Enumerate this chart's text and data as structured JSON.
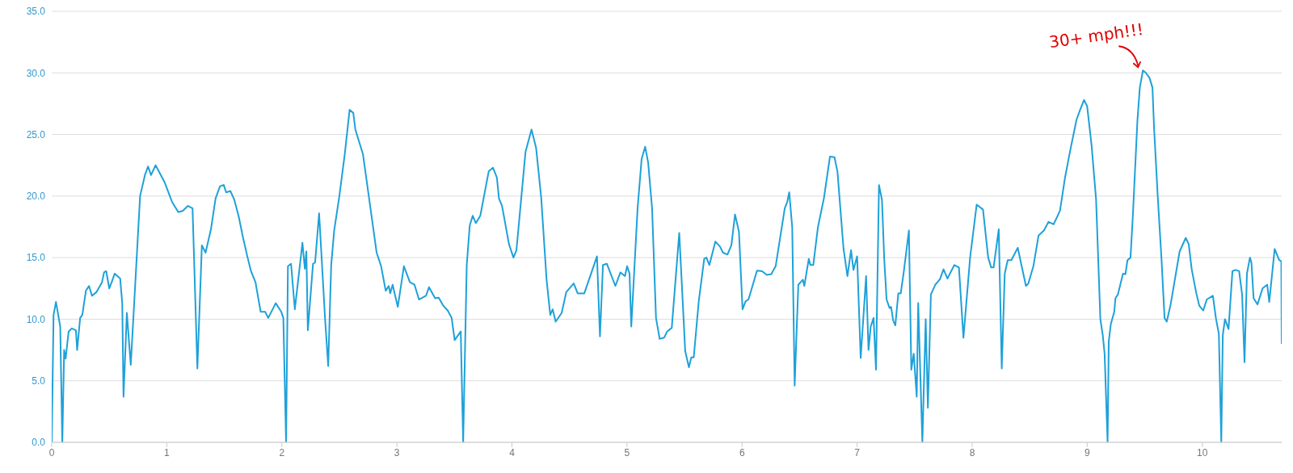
{
  "chart_data": {
    "type": "line",
    "x": [
      0,
      0.016,
      0.037,
      0.074,
      0.092,
      0.108,
      0.121,
      0.147,
      0.174,
      0.21,
      0.221,
      0.247,
      0.266,
      0.297,
      0.324,
      0.35,
      0.389,
      0.437,
      0.455,
      0.474,
      0.5,
      0.521,
      0.547,
      0.595,
      0.613,
      0.624,
      0.653,
      0.687,
      0.718,
      0.768,
      0.81,
      0.837,
      0.863,
      0.903,
      0.982,
      1.047,
      1.1,
      1.139,
      1.184,
      1.224,
      1.266,
      1.305,
      1.337,
      1.384,
      1.424,
      1.463,
      1.495,
      1.516,
      1.553,
      1.587,
      1.626,
      1.661,
      1.7,
      1.732,
      1.771,
      1.816,
      1.855,
      1.882,
      1.947,
      1.995,
      2.013,
      2.037,
      2.053,
      2.08,
      2.113,
      2.179,
      2.2,
      2.213,
      2.226,
      2.271,
      2.289,
      2.324,
      2.376,
      2.403,
      2.429,
      2.455,
      2.5,
      2.547,
      2.589,
      2.621,
      2.639,
      2.705,
      2.824,
      2.863,
      2.903,
      2.929,
      2.942,
      2.963,
      3.008,
      3.061,
      3.113,
      3.153,
      3.192,
      3.253,
      3.279,
      3.332,
      3.363,
      3.403,
      3.442,
      3.476,
      3.502,
      3.555,
      3.576,
      3.607,
      3.633,
      3.659,
      3.686,
      3.725,
      3.798,
      3.835,
      3.869,
      3.887,
      3.914,
      3.974,
      4.013,
      4.039,
      4.118,
      4.17,
      4.21,
      4.254,
      4.301,
      4.333,
      4.354,
      4.38,
      4.432,
      4.472,
      4.537,
      4.571,
      4.629,
      4.739,
      4.765,
      4.791,
      4.825,
      4.899,
      4.943,
      4.982,
      5.001,
      5.022,
      5.037,
      5.092,
      5.127,
      5.158,
      5.184,
      5.218,
      5.252,
      5.284,
      5.323,
      5.349,
      5.389,
      5.454,
      5.506,
      5.538,
      5.559,
      5.58,
      5.624,
      5.671,
      5.69,
      5.716,
      5.768,
      5.808,
      5.834,
      5.873,
      5.907,
      5.939,
      5.973,
      6.004,
      6.03,
      6.056,
      6.13,
      6.174,
      6.214,
      6.253,
      6.292,
      6.371,
      6.392,
      6.41,
      6.436,
      6.457,
      6.489,
      6.528,
      6.541,
      6.58,
      6.593,
      6.619,
      6.659,
      6.711,
      6.764,
      6.803,
      6.829,
      6.882,
      6.916,
      6.947,
      6.968,
      7.0,
      7.031,
      7.078,
      7.099,
      7.118,
      7.143,
      7.164,
      7.19,
      7.216,
      7.235,
      7.256,
      7.282,
      7.295,
      7.313,
      7.332,
      7.358,
      7.379,
      7.405,
      7.45,
      7.471,
      7.492,
      7.518,
      7.531,
      7.567,
      7.596,
      7.615,
      7.641,
      7.68,
      7.72,
      7.751,
      7.785,
      7.845,
      7.885,
      7.924,
      7.982,
      8.039,
      8.094,
      8.139,
      8.165,
      8.186,
      8.231,
      8.257,
      8.283,
      8.309,
      8.341,
      8.396,
      8.467,
      8.488,
      8.532,
      8.577,
      8.624,
      8.663,
      8.708,
      8.763,
      8.807,
      8.852,
      8.907,
      8.938,
      8.972,
      8.999,
      9.038,
      9.077,
      9.114,
      9.135,
      9.151,
      9.177,
      9.187,
      9.205,
      9.235,
      9.245,
      9.266,
      9.311,
      9.332,
      9.35,
      9.376,
      9.397,
      9.436,
      9.457,
      9.484,
      9.51,
      9.541,
      9.567,
      9.581,
      9.612,
      9.646,
      9.672,
      9.691,
      9.725,
      9.803,
      9.856,
      9.882,
      9.908,
      9.948,
      9.974,
      10.008,
      10.039,
      10.092,
      10.118,
      10.144,
      10.165,
      10.178,
      10.197,
      10.228,
      10.262,
      10.288,
      10.32,
      10.346,
      10.367,
      10.388,
      10.414,
      10.427,
      10.446,
      10.48,
      10.524,
      10.564,
      10.582,
      10.629,
      10.668,
      10.687,
      10.69
    ],
    "series": [
      {
        "color": "#1ea1d9",
        "values": [
          0,
          10.35,
          11.4,
          9.4,
          0,
          7.5,
          6.8,
          9.0,
          9.25,
          9.1,
          7.5,
          10.1,
          10.35,
          12.3,
          12.7,
          11.9,
          12.2,
          13.0,
          13.8,
          13.9,
          12.5,
          13.0,
          13.7,
          13.3,
          11.3,
          3.7,
          10.5,
          6.3,
          11.5,
          20.0,
          21.7,
          22.4,
          21.7,
          22.5,
          21.1,
          19.5,
          18.7,
          18.8,
          19.2,
          19.0,
          6.0,
          16.0,
          15.4,
          17.3,
          19.8,
          20.8,
          20.9,
          20.3,
          20.4,
          19.7,
          18.3,
          16.7,
          15.1,
          13.9,
          13.0,
          10.6,
          10.6,
          10.1,
          11.3,
          10.6,
          10.1,
          0,
          14.3,
          14.5,
          10.8,
          16.2,
          14.1,
          15.5,
          9.1,
          14.5,
          14.6,
          18.6,
          10.0,
          6.2,
          14.4,
          17.2,
          20.0,
          23.4,
          27.0,
          26.75,
          25.4,
          23.4,
          15.4,
          14.3,
          12.3,
          12.7,
          12.1,
          12.8,
          11.0,
          14.3,
          13.0,
          12.8,
          11.6,
          11.9,
          12.6,
          11.7,
          11.75,
          11.1,
          10.7,
          10.1,
          8.3,
          9.0,
          0,
          14.4,
          17.6,
          18.4,
          17.8,
          18.4,
          22.0,
          22.3,
          21.5,
          19.8,
          19.2,
          16.1,
          15.0,
          15.6,
          23.6,
          25.4,
          23.9,
          19.9,
          13.2,
          10.35,
          10.8,
          9.8,
          10.5,
          12.2,
          12.9,
          12.1,
          12.1,
          15.1,
          8.6,
          14.4,
          14.5,
          12.7,
          13.8,
          13.5,
          14.3,
          13.7,
          9.4,
          19.0,
          23.0,
          24.0,
          22.7,
          19.0,
          10.1,
          8.4,
          8.5,
          9.0,
          9.3,
          17.0,
          7.4,
          6.1,
          6.9,
          6.9,
          11.5,
          14.9,
          15.0,
          14.4,
          16.3,
          15.9,
          15.4,
          15.25,
          16.0,
          18.5,
          17.1,
          10.8,
          11.45,
          11.6,
          13.95,
          13.9,
          13.6,
          13.65,
          14.3,
          19.0,
          19.5,
          20.3,
          17.45,
          4.6,
          12.8,
          13.2,
          12.7,
          14.9,
          14.4,
          14.4,
          17.45,
          19.8,
          23.2,
          23.15,
          22.0,
          15.7,
          13.5,
          15.6,
          14.0,
          15.1,
          6.85,
          13.5,
          7.5,
          9.4,
          10.1,
          5.9,
          20.9,
          19.7,
          15.0,
          11.6,
          10.9,
          11.0,
          9.9,
          9.5,
          12.1,
          12.1,
          13.8,
          17.2,
          5.9,
          7.2,
          3.7,
          11.3,
          0,
          10.0,
          2.8,
          12.0,
          12.8,
          13.25,
          14.05,
          13.3,
          14.4,
          14.2,
          8.5,
          15.0,
          19.3,
          18.9,
          15.0,
          14.2,
          14.2,
          17.3,
          6.0,
          13.7,
          14.8,
          14.8,
          15.8,
          12.7,
          12.9,
          14.3,
          16.8,
          17.2,
          17.9,
          17.7,
          18.8,
          21.5,
          23.7,
          26.2,
          27.0,
          27.8,
          27.3,
          24.1,
          19.7,
          10.0,
          8.7,
          7.2,
          0,
          8.2,
          9.6,
          10.6,
          11.7,
          12.0,
          13.7,
          13.65,
          14.8,
          15.0,
          18.5,
          26.1,
          28.8,
          30.2,
          30.0,
          29.6,
          28.8,
          25.5,
          20.1,
          14.8,
          10.1,
          9.8,
          11.2,
          15.5,
          16.6,
          16.1,
          14.05,
          12.1,
          11.1,
          10.7,
          11.6,
          11.9,
          10.1,
          8.8,
          0,
          8.7,
          10.0,
          9.2,
          13.9,
          14.0,
          13.9,
          12.0,
          6.5,
          13.7,
          15.0,
          14.6,
          11.7,
          11.2,
          12.5,
          12.8,
          11.4,
          15.7,
          14.8,
          14.7,
          8.0
        ]
      }
    ],
    "xlim": [
      0,
      10.69
    ],
    "xticks": [
      0,
      1,
      2,
      3,
      4,
      5,
      6,
      7,
      8,
      9,
      10
    ],
    "ylim": [
      0,
      35
    ],
    "yticks": [
      {
        "value": 0,
        "label": "0.0"
      },
      {
        "value": 5,
        "label": "5.0"
      },
      {
        "value": 10,
        "label": "10.0"
      },
      {
        "value": 15,
        "label": "15.0"
      },
      {
        "value": 20,
        "label": "20.0"
      },
      {
        "value": 25,
        "label": "25.0"
      },
      {
        "value": 30,
        "label": "30.0"
      },
      {
        "value": 35,
        "label": "35.0"
      }
    ],
    "grid": "y",
    "annotations": [
      {
        "text": "30+ mph!!!",
        "x": 9.484,
        "y": 30.2
      }
    ]
  }
}
